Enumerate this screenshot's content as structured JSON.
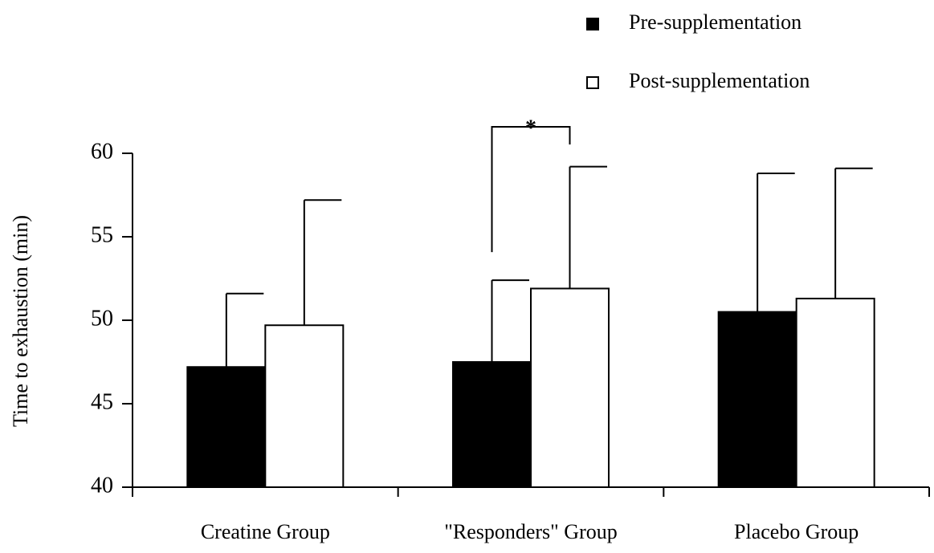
{
  "chart_data": {
    "type": "bar",
    "y_label": "Time to exhaustion (min)",
    "categories": [
      "Creatine Group",
      "\"Responders\" Group",
      "Placebo Group"
    ],
    "series": [
      {
        "name": "Pre-supplementation",
        "color": "#000000",
        "values": [
          47.2,
          47.5,
          50.5
        ],
        "errors": [
          4.4,
          4.9,
          8.3
        ]
      },
      {
        "name": "Post-supplementation",
        "color": "#ffffff",
        "values": [
          49.7,
          51.9,
          51.3
        ],
        "errors": [
          7.5,
          7.3,
          7.8
        ]
      }
    ],
    "annotations": [
      {
        "text": "*",
        "category": 1
      }
    ],
    "ylim": [
      40,
      60
    ],
    "yticks": [
      40,
      45,
      50,
      55,
      60
    ],
    "legend": "top-right"
  }
}
